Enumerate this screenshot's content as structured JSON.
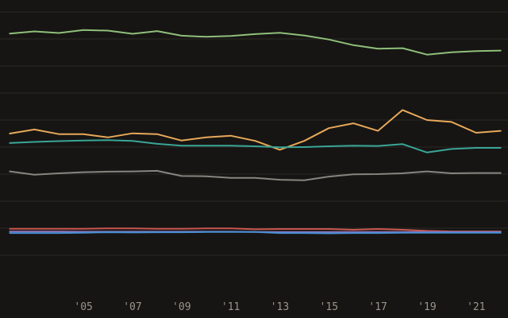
{
  "chart_data": {
    "type": "line",
    "title": "",
    "xlabel": "",
    "ylabel": "",
    "x": [
      2002,
      2003,
      2004,
      2005,
      2006,
      2007,
      2008,
      2009,
      2010,
      2011,
      2012,
      2013,
      2014,
      2015,
      2016,
      2017,
      2018,
      2019,
      2020,
      2021,
      2022
    ],
    "xlim": [
      2001.6,
      2022.3
    ],
    "ylim": [
      0,
      100
    ],
    "grid": true,
    "gridlines_y": [
      10,
      20,
      30,
      40,
      50,
      60,
      70,
      80,
      90,
      100
    ],
    "tick_values": [
      2005,
      2007,
      2009,
      2011,
      2013,
      2015,
      2017,
      2019,
      2021
    ],
    "tick_labels": [
      "'05",
      "'07",
      "'09",
      "'11",
      "'13",
      "'15",
      "'17",
      "'19",
      "'21"
    ],
    "series": [
      {
        "name": "green",
        "color": "#8fbf7a",
        "values": [
          92.0,
          92.8,
          92.2,
          93.3,
          93.1,
          91.9,
          92.9,
          91.2,
          90.8,
          91.1,
          91.8,
          92.3,
          91.3,
          89.8,
          87.7,
          86.4,
          86.6,
          84.2,
          85.1,
          85.5,
          85.7
        ]
      },
      {
        "name": "orange",
        "color": "#e8a85a",
        "values": [
          55.0,
          56.5,
          54.8,
          54.8,
          53.6,
          55.1,
          54.8,
          52.4,
          53.6,
          54.2,
          52.3,
          49.0,
          52.3,
          57.0,
          58.8,
          56.0,
          63.7,
          60.0,
          59.3,
          55.3,
          56.0
        ]
      },
      {
        "name": "teal",
        "color": "#3aa597",
        "values": [
          51.5,
          51.9,
          52.2,
          52.4,
          52.6,
          52.3,
          51.2,
          50.5,
          50.5,
          50.5,
          50.3,
          49.9,
          50.0,
          50.3,
          50.5,
          50.4,
          51.1,
          48.0,
          49.3,
          49.7,
          49.7
        ]
      },
      {
        "name": "grey",
        "color": "#86857f",
        "values": [
          41.0,
          39.8,
          40.3,
          40.7,
          40.9,
          41.0,
          41.2,
          39.3,
          39.2,
          38.6,
          38.6,
          37.9,
          37.7,
          39.1,
          39.9,
          40.0,
          40.3,
          41.0,
          40.3,
          40.4,
          40.4
        ]
      },
      {
        "name": "red",
        "color": "#c95750",
        "values": [
          19.8,
          19.8,
          19.8,
          19.8,
          19.9,
          19.9,
          19.8,
          19.8,
          19.9,
          19.9,
          19.6,
          19.7,
          19.7,
          19.7,
          19.4,
          19.7,
          19.4,
          19.0,
          18.8,
          18.8,
          18.8
        ]
      },
      {
        "name": "purple",
        "color": "#8a6fb0",
        "values": [
          18.8,
          18.8,
          18.8,
          18.7,
          18.7,
          18.7,
          18.7,
          18.7,
          18.7,
          18.7,
          18.6,
          18.6,
          18.6,
          18.6,
          18.6,
          18.6,
          18.6,
          18.6,
          18.6,
          18.6,
          18.6
        ]
      },
      {
        "name": "blue",
        "color": "#4a8fd6",
        "values": [
          18.2,
          18.2,
          18.2,
          18.3,
          18.5,
          18.4,
          18.5,
          18.5,
          18.6,
          18.6,
          18.6,
          18.2,
          18.2,
          18.1,
          18.2,
          18.2,
          18.3,
          18.3,
          18.3,
          18.3,
          18.3
        ]
      }
    ]
  }
}
